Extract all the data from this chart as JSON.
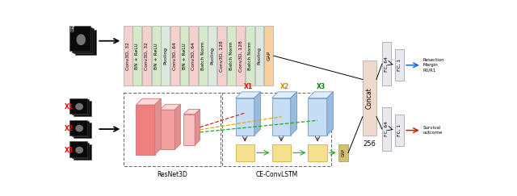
{
  "fig_width": 6.4,
  "fig_height": 2.43,
  "dpi": 100,
  "bg_color": "#ffffff",
  "top_branch_blocks": [
    {
      "label": "Conv3D, 32",
      "color": "#f5d0cc"
    },
    {
      "label": "BN + ReLU",
      "color": "#d5e8c8"
    },
    {
      "label": "Conv3D, 32",
      "color": "#f5d0cc"
    },
    {
      "label": "BN + ReLU",
      "color": "#d5e8c8"
    },
    {
      "label": "Pooling",
      "color": "#dce8dc"
    },
    {
      "label": "Conv3D, 64",
      "color": "#f5d0cc"
    },
    {
      "label": "BN + ReLU",
      "color": "#d5e8c8"
    },
    {
      "label": "Conv3D, 64",
      "color": "#f5d0cc"
    },
    {
      "label": "Batch Norm",
      "color": "#d5e8c8"
    },
    {
      "label": "Pooling",
      "color": "#dce8dc"
    },
    {
      "label": "Conv3D, 128",
      "color": "#f5d0cc"
    },
    {
      "label": "Batch Norm",
      "color": "#d5e8c8"
    },
    {
      "label": "Conv3D, 128",
      "color": "#f5d0cc"
    },
    {
      "label": "Batch Norm",
      "color": "#d5e8c8"
    },
    {
      "label": "Pooling",
      "color": "#dce8dc"
    },
    {
      "label": "GAP",
      "color": "#f5d0a0"
    }
  ],
  "resnet_label": "ResNet3D",
  "lstm_label": "CE-ConvLSTM",
  "concat_label": "Concat",
  "concat_value": "256",
  "arrow_top_color": "#1a6bcc",
  "arrow_bot_color": "#cc2200",
  "concat_color": "#f0d8cc",
  "fc_color": "#e8e8ee"
}
